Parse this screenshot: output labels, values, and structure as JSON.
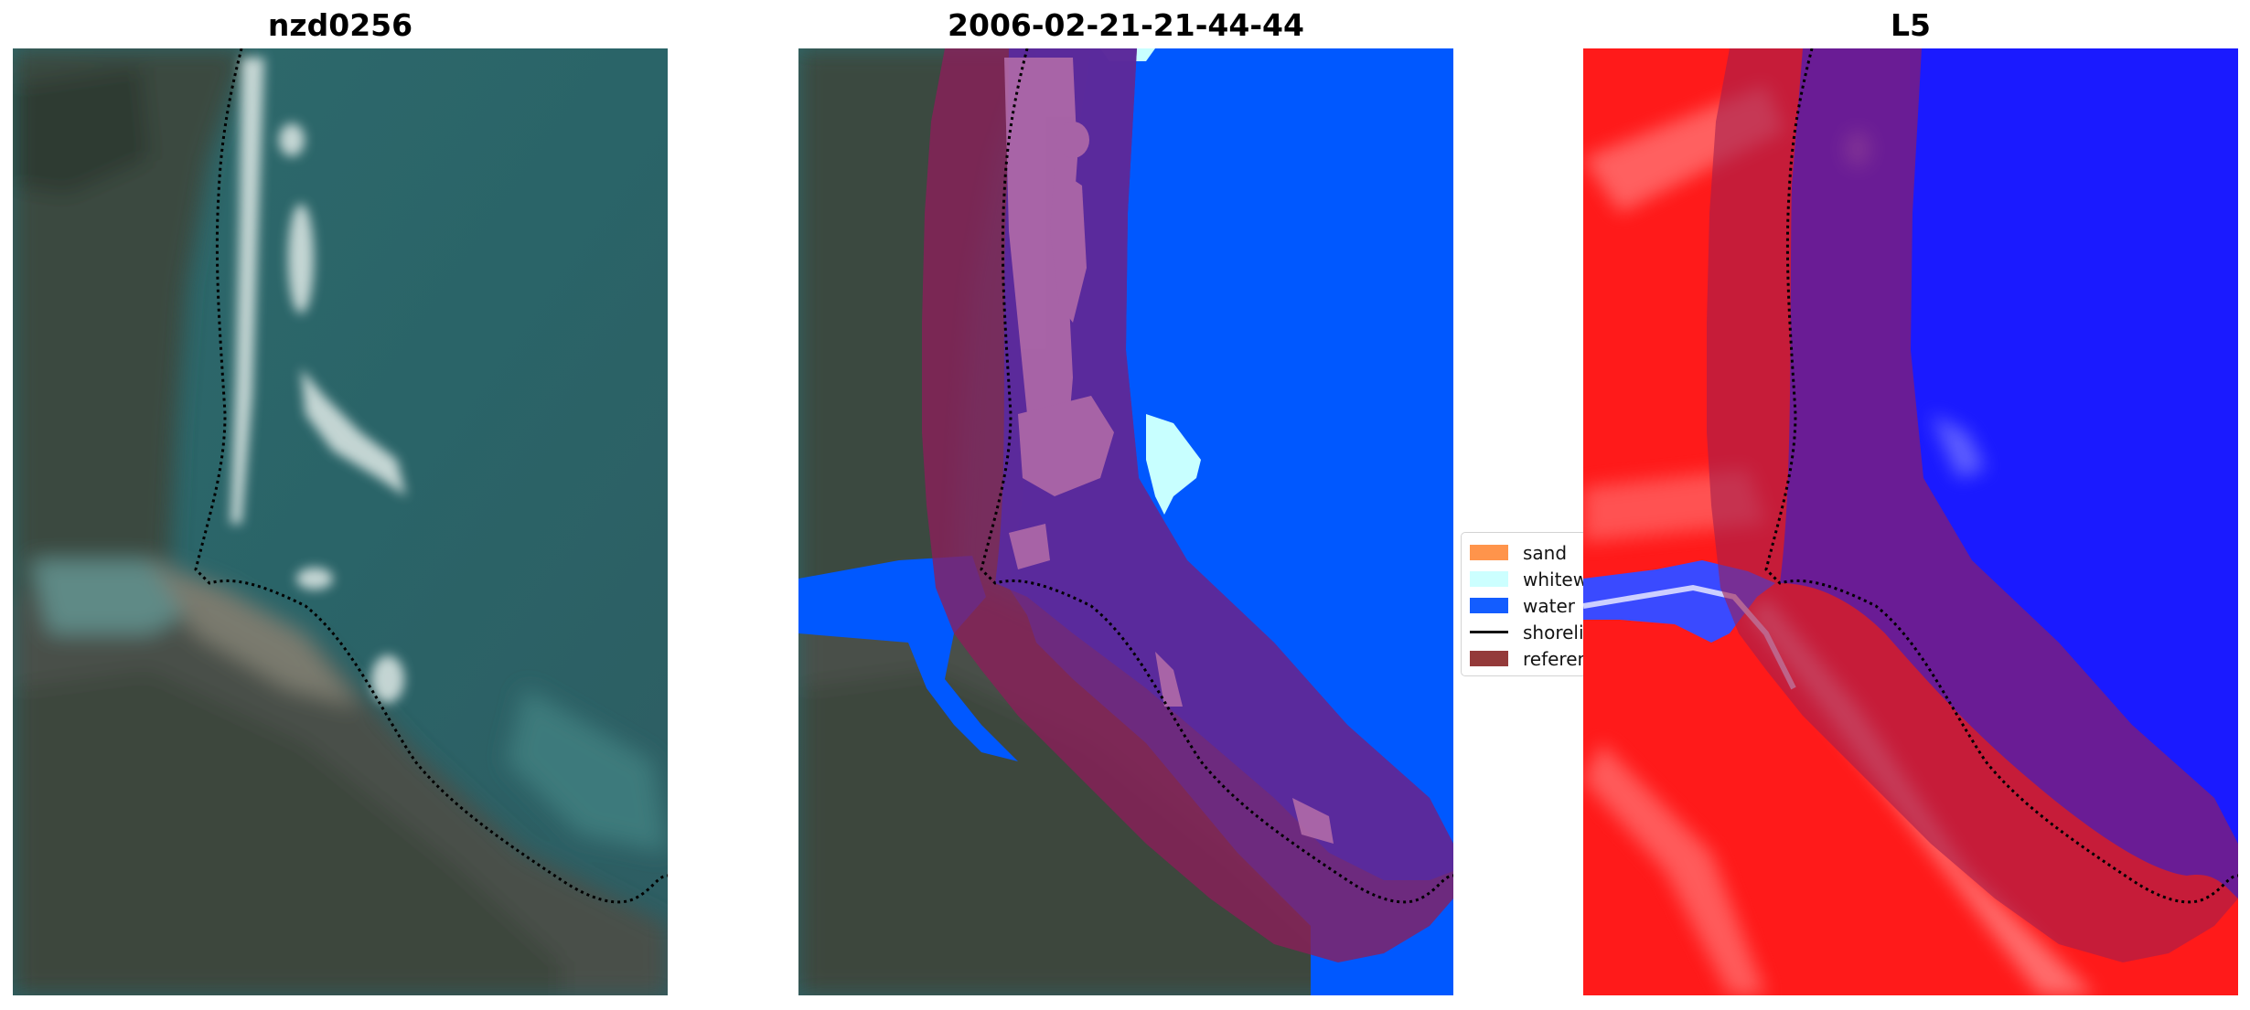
{
  "titles": {
    "left": "nzd0256",
    "middle": "2006-02-21-21-44-44",
    "right": "L5"
  },
  "legend": {
    "items": [
      {
        "label": "sand",
        "color": "#ff8c3c",
        "kind": "patch"
      },
      {
        "label": "whitewater",
        "color": "#c8ffff",
        "kind": "patch"
      },
      {
        "label": "water",
        "color": "#0050ff",
        "kind": "patch"
      },
      {
        "label": "shoreline",
        "color": "#000000",
        "kind": "line"
      },
      {
        "label": "reference shoreline buffer",
        "color": "#8c2a2a",
        "kind": "patch"
      }
    ]
  },
  "colors": {
    "water_class": "#0058ff",
    "whitewater_class": "#c8ffff",
    "buffer": "#8c1e2e",
    "index_positive": "#ff0000",
    "index_negative": "#0000ff"
  }
}
